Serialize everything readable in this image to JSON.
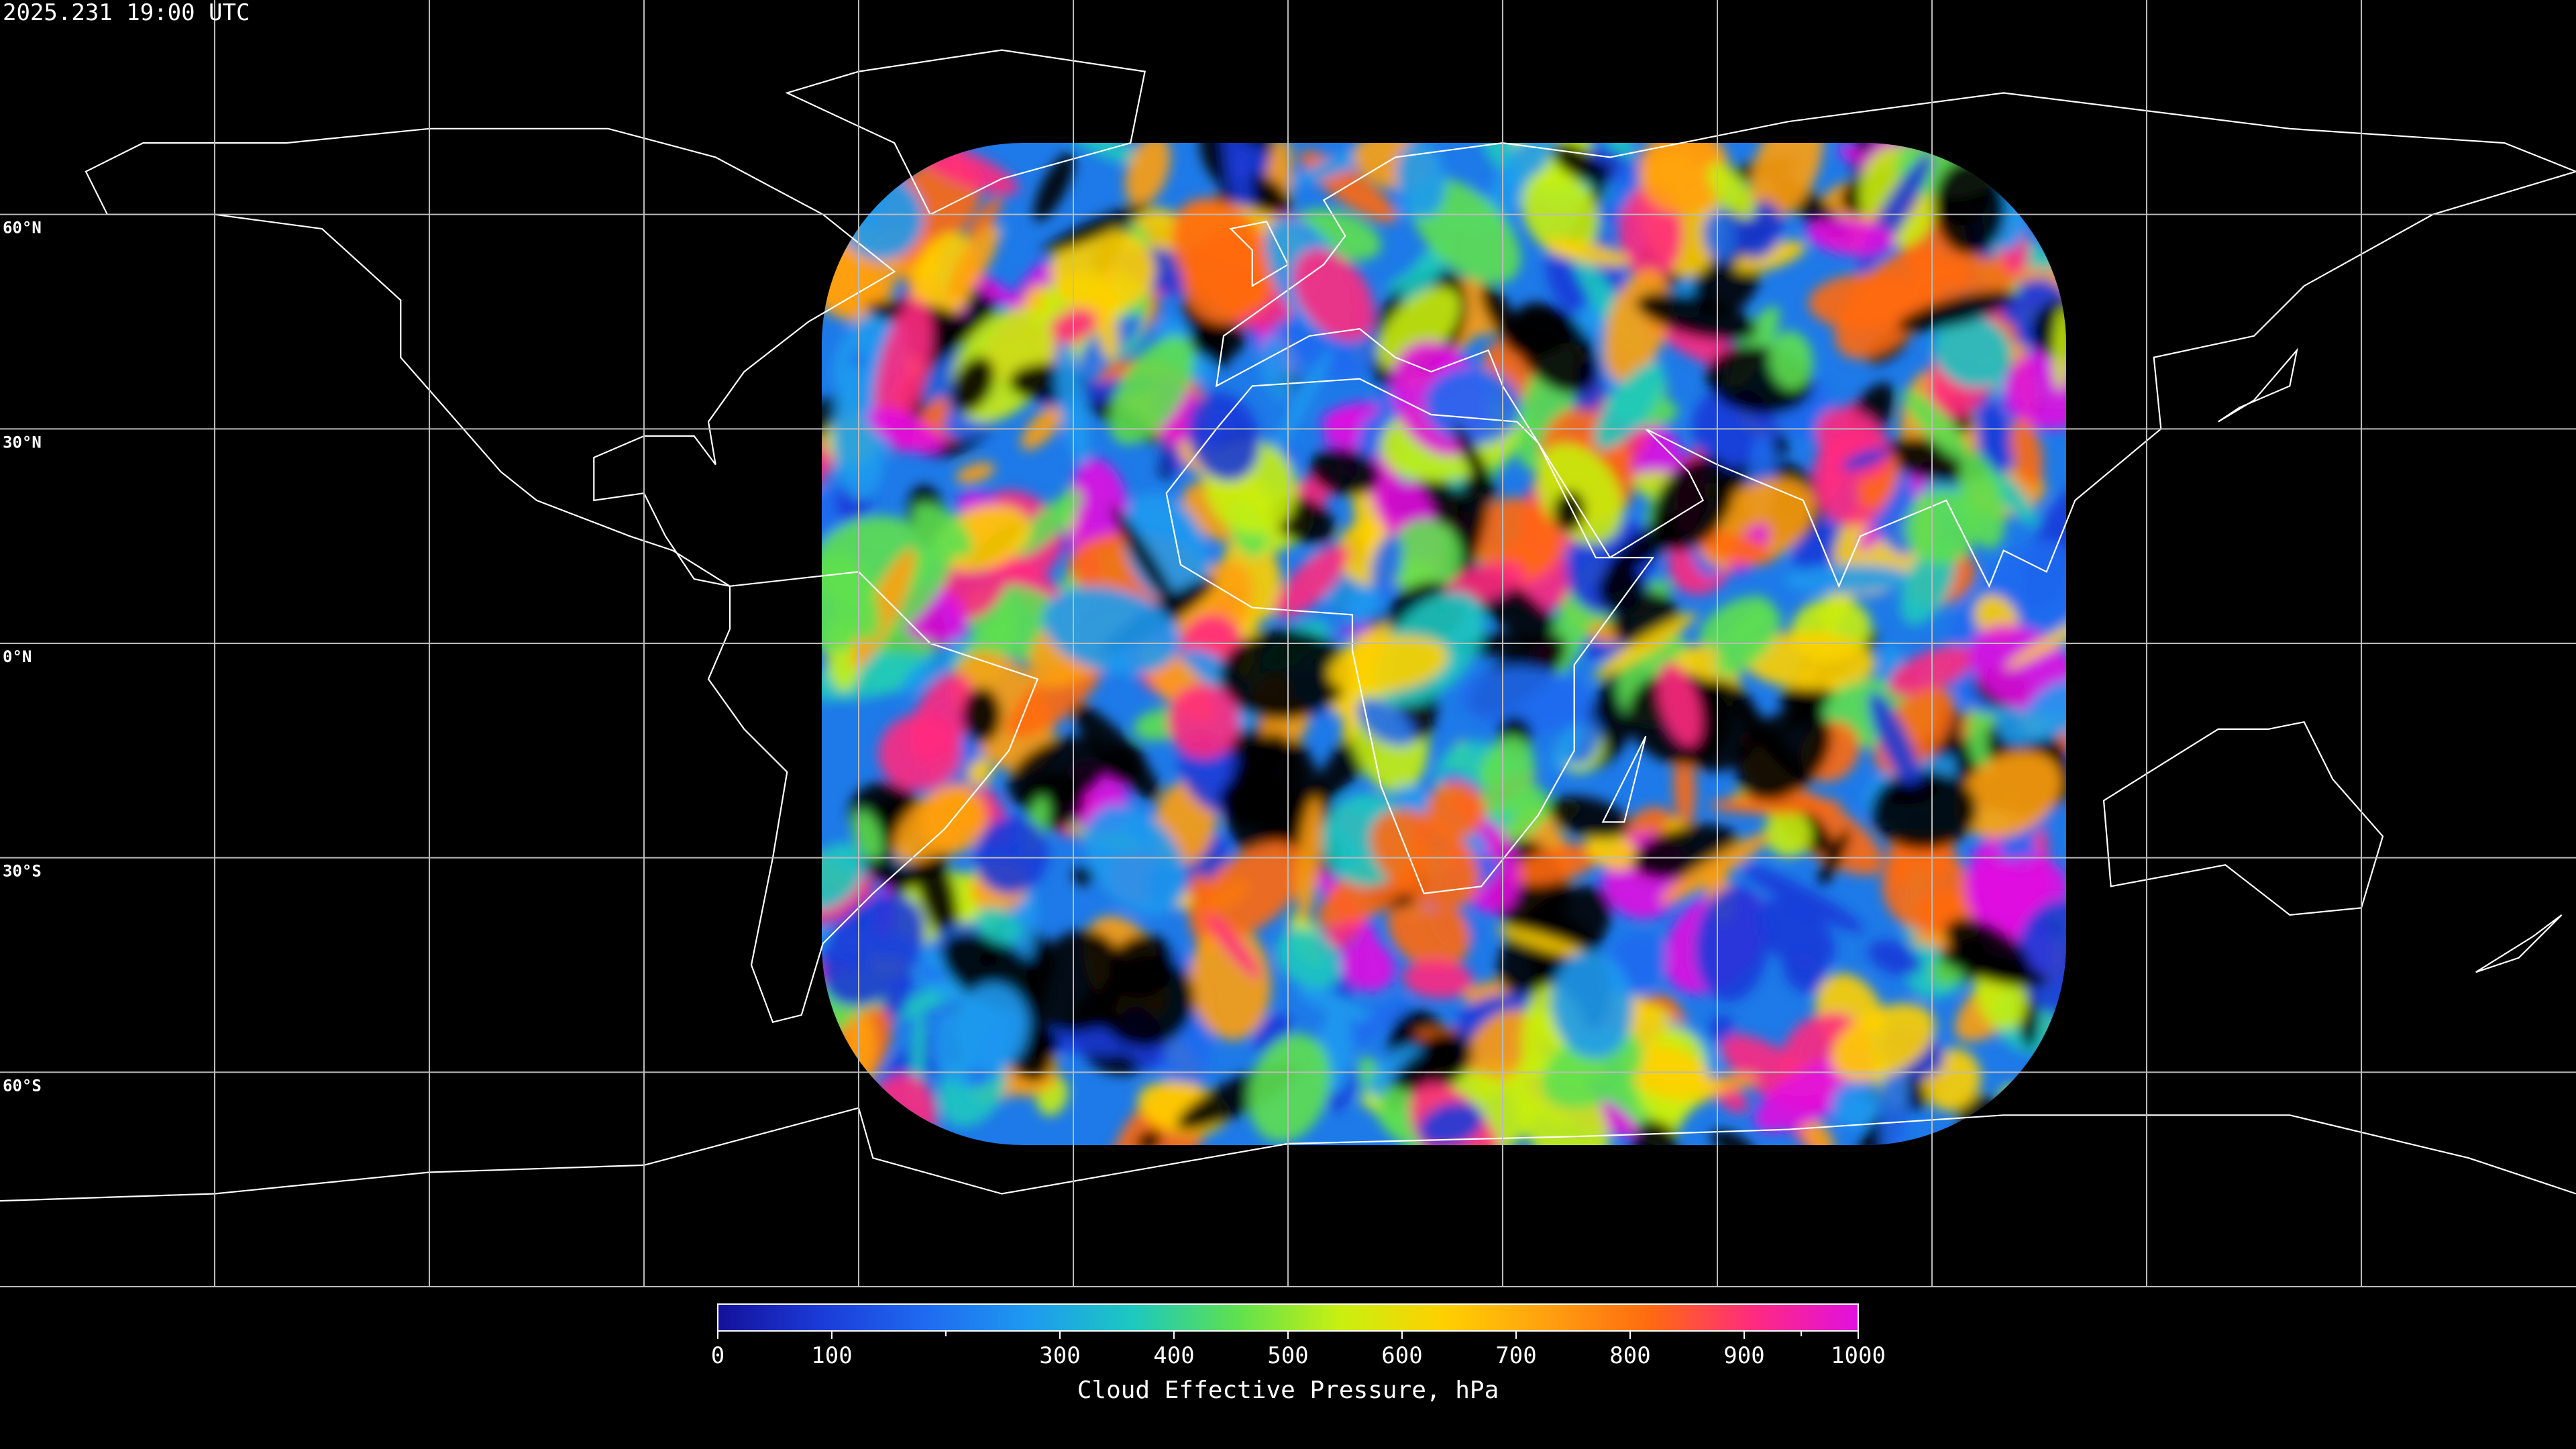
{
  "map": {
    "timestamp": "2025.231 19:00 UTC",
    "xlim": [
      -180,
      180
    ],
    "ylim": [
      -90,
      90
    ],
    "lon_lines": [
      -150,
      -120,
      -90,
      -60,
      -30,
      0,
      30,
      60,
      90,
      120,
      150
    ],
    "lat_lines": [
      {
        "value": 60,
        "label": "60°N"
      },
      {
        "value": 30,
        "label": "30°N"
      },
      {
        "value": 0,
        "label": "0°N"
      },
      {
        "value": -30,
        "label": "30°S"
      },
      {
        "value": -60,
        "label": "60°S"
      }
    ],
    "colorbar": {
      "label": "Cloud Effective Pressure, hPa",
      "lim": [
        0,
        1000
      ],
      "ticks": [
        0,
        100,
        300,
        400,
        500,
        600,
        700,
        800,
        900,
        1000
      ],
      "minor_ticks": [
        200,
        950
      ],
      "colormap": [
        "#14109a",
        "#1b3bd8",
        "#1f6af0",
        "#1e9af0",
        "#1cc8c0",
        "#5ee050",
        "#c8f010",
        "#ffd000",
        "#ffa010",
        "#ff6a10",
        "#ff2a80",
        "#e010e0"
      ]
    }
  }
}
